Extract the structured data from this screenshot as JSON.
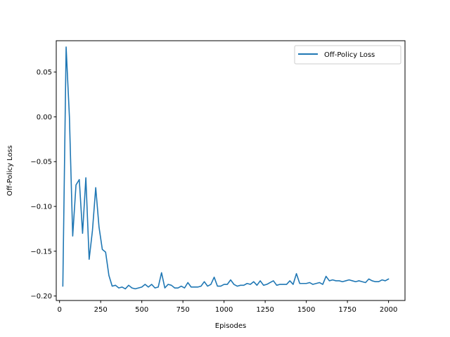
{
  "chart_data": {
    "type": "line",
    "title": "",
    "xlabel": "Episodes",
    "ylabel": "Off-Policy Loss",
    "xlim": [
      -20,
      2100
    ],
    "ylim": [
      -0.205,
      0.085
    ],
    "xticks": [
      0,
      250,
      500,
      750,
      1000,
      1250,
      1500,
      1750,
      2000
    ],
    "xtick_labels": [
      "0",
      "250",
      "500",
      "750",
      "1000",
      "1250",
      "1500",
      "1750",
      "2000"
    ],
    "yticks": [
      0.05,
      0.0,
      -0.05,
      -0.1,
      -0.15,
      -0.2
    ],
    "ytick_labels": [
      "0.05",
      "0.00",
      "−0.05",
      "−0.10",
      "−0.15",
      "−0.20"
    ],
    "grid": false,
    "legend_position": "top-right",
    "series": [
      {
        "name": "Off-Policy Loss",
        "color": "#1f77b4",
        "x": [
          20,
          40,
          60,
          80,
          100,
          120,
          140,
          160,
          180,
          200,
          220,
          240,
          260,
          280,
          300,
          320,
          340,
          360,
          380,
          400,
          420,
          440,
          460,
          480,
          500,
          520,
          540,
          560,
          580,
          600,
          620,
          640,
          660,
          680,
          700,
          720,
          740,
          760,
          780,
          800,
          820,
          840,
          860,
          880,
          900,
          920,
          940,
          960,
          980,
          1000,
          1020,
          1040,
          1060,
          1080,
          1100,
          1120,
          1140,
          1160,
          1180,
          1200,
          1220,
          1240,
          1260,
          1280,
          1300,
          1320,
          1340,
          1360,
          1380,
          1400,
          1420,
          1440,
          1460,
          1480,
          1500,
          1520,
          1540,
          1560,
          1580,
          1600,
          1620,
          1640,
          1660,
          1680,
          1700,
          1720,
          1740,
          1760,
          1780,
          1800,
          1820,
          1840,
          1860,
          1880,
          1900,
          1920,
          1940,
          1960,
          1980,
          2000
        ],
        "values": [
          -0.189,
          0.078,
          0.0,
          -0.133,
          -0.076,
          -0.07,
          -0.13,
          -0.068,
          -0.159,
          -0.127,
          -0.079,
          -0.123,
          -0.148,
          -0.151,
          -0.177,
          -0.189,
          -0.188,
          -0.191,
          -0.19,
          -0.192,
          -0.188,
          -0.191,
          -0.192,
          -0.191,
          -0.19,
          -0.187,
          -0.19,
          -0.187,
          -0.191,
          -0.19,
          -0.174,
          -0.191,
          -0.187,
          -0.188,
          -0.191,
          -0.191,
          -0.189,
          -0.191,
          -0.185,
          -0.19,
          -0.19,
          -0.19,
          -0.189,
          -0.184,
          -0.189,
          -0.187,
          -0.179,
          -0.189,
          -0.189,
          -0.187,
          -0.187,
          -0.182,
          -0.187,
          -0.189,
          -0.188,
          -0.188,
          -0.186,
          -0.187,
          -0.184,
          -0.188,
          -0.183,
          -0.188,
          -0.187,
          -0.185,
          -0.183,
          -0.188,
          -0.187,
          -0.187,
          -0.187,
          -0.183,
          -0.187,
          -0.175,
          -0.186,
          -0.186,
          -0.186,
          -0.185,
          -0.187,
          -0.186,
          -0.185,
          -0.187,
          -0.178,
          -0.183,
          -0.182,
          -0.183,
          -0.183,
          -0.184,
          -0.183,
          -0.182,
          -0.183,
          -0.184,
          -0.183,
          -0.184,
          -0.185,
          -0.181,
          -0.183,
          -0.184,
          -0.184,
          -0.182,
          -0.183,
          -0.181
        ]
      }
    ]
  }
}
